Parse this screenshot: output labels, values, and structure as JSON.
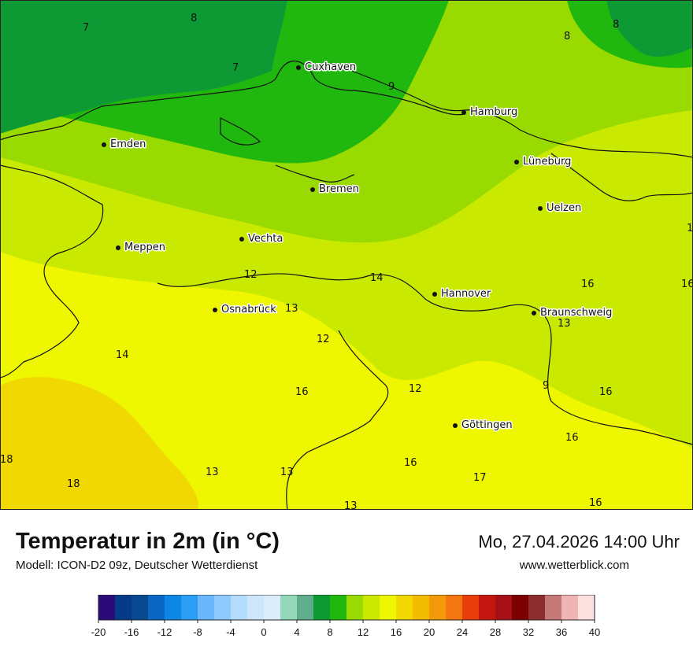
{
  "map": {
    "cities": [
      {
        "name": "Cuxhaven"
      },
      {
        "name": "Hamburg"
      },
      {
        "name": "Emden"
      },
      {
        "name": "Lüneburg"
      },
      {
        "name": "Bremen"
      },
      {
        "name": "Uelzen"
      },
      {
        "name": "Vechta"
      },
      {
        "name": "Meppen"
      },
      {
        "name": "Hannover"
      },
      {
        "name": "Osnabrück"
      },
      {
        "name": "Braunschweig"
      },
      {
        "name": "Göttingen"
      }
    ],
    "iso_labels": [
      "7",
      "8",
      "7",
      "8",
      "8",
      "9",
      "12",
      "14",
      "13",
      "12",
      "16",
      "13",
      "14",
      "12",
      "9",
      "16",
      "16",
      "16",
      "16",
      "13",
      "13",
      "18",
      "18",
      "13",
      "17",
      "16",
      "16",
      "1"
    ]
  },
  "header": {
    "title": "Temperatur in 2m (in °C)",
    "model": "Modell: ICON-D2 09z, Deutscher Wetterdienst",
    "datetime": "Mo, 27.04.2026 14:00 Uhr",
    "website": "www.wetterblick.com"
  },
  "legend": {
    "colors": [
      "#2b0b7a",
      "#063b87",
      "#084a91",
      "#0a66c2",
      "#0d86e6",
      "#2a9ef5",
      "#6ab8fb",
      "#8fcafc",
      "#b3dcfd",
      "#cde6fb",
      "#ddecfa",
      "#93d9b9",
      "#5fad8b",
      "#0d9a35",
      "#20b80f",
      "#99db00",
      "#c9e900",
      "#eef700",
      "#f0d800",
      "#f2bd00",
      "#f29a0c",
      "#f47611",
      "#e83e0b",
      "#c41610",
      "#a81018",
      "#7d0000",
      "#8b2d2d",
      "#c47878",
      "#f0b4b4",
      "#fde0e0"
    ],
    "tick_labels": [
      "-20",
      "-16",
      "-12",
      "-8",
      "-4",
      "0",
      "4",
      "8",
      "12",
      "16",
      "20",
      "24",
      "28",
      "32",
      "36",
      "40"
    ]
  }
}
